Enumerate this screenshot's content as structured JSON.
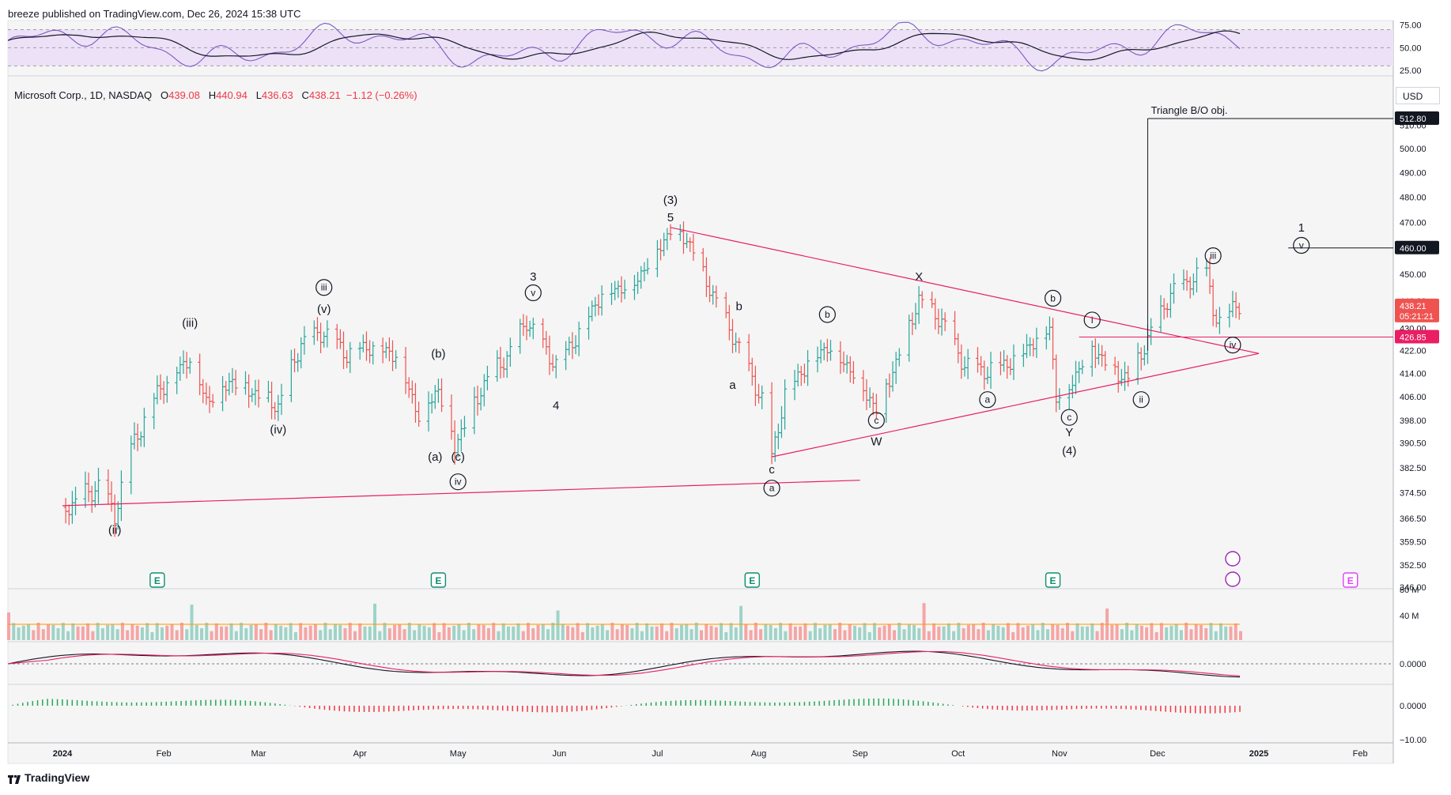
{
  "header": {
    "published_by": "breeze published on TradingView.com, Dec 26, 2024 15:38 UTC"
  },
  "legend": {
    "symbol": "Microsoft Corp., 1D, NASDAQ",
    "o_label": "O",
    "o_value": "439.08",
    "h_label": "H",
    "h_value": "440.94",
    "l_label": "L",
    "l_value": "436.63",
    "c_label": "C",
    "c_value": "438.21",
    "change": "−1.12 (−0.26%)"
  },
  "currency": "USD",
  "brand": "TradingView",
  "colors": {
    "up": "#26a69a",
    "down": "#ef5350",
    "trendline": "#e91e63",
    "rsi": "#7e57c2",
    "rsi_band": "#ede1f7",
    "macd": "#131722",
    "signal": "#e91e63",
    "hist_up": "#26a65b",
    "hist_down": "#f23645",
    "earnings": "#0e8f6e"
  },
  "chart_data": {
    "type": "bar",
    "subtype": "ohlc-with-elliott-wave-annotations",
    "x_labels": [
      "2024",
      "Feb",
      "Mar",
      "Apr",
      "May",
      "Jun",
      "Jul",
      "Aug",
      "Sep",
      "Oct",
      "Nov",
      "Dec",
      "2025",
      "Feb"
    ],
    "x_label_dates": [
      "2024-01-01",
      "2024-02-01",
      "2024-03-01",
      "2024-04-01",
      "2024-05-01",
      "2024-06-01",
      "2024-07-01",
      "2024-08-01",
      "2024-09-01",
      "2024-10-01",
      "2024-11-01",
      "2024-12-01",
      "2025-01-01",
      "2025-02-01"
    ],
    "y_ticks": [
      346.0,
      352.5,
      359.5,
      366.5,
      374.5,
      382.5,
      390.5,
      398.0,
      406.0,
      414.0,
      422.0,
      430.0,
      440.0,
      450.0,
      460.0,
      470.0,
      480.0,
      490.0,
      500.0,
      510.0
    ],
    "y_tick_labels": [
      "346.00",
      "352.50",
      "359.50",
      "366.50",
      "374.50",
      "382.50",
      "390.50",
      "398.00",
      "406.00",
      "414.00",
      "422.00",
      "430.00",
      "440.00",
      "450.00",
      "",
      "470.00",
      "480.00",
      "490.00",
      "500.00",
      "510.00"
    ],
    "ylim": [
      346,
      520
    ],
    "scale": "log",
    "price_path": [
      [
        "2024-01-02",
        370
      ],
      [
        "2024-01-08",
        374
      ],
      [
        "2024-01-12",
        377
      ],
      [
        "2024-01-17",
        368
      ],
      [
        "2024-01-22",
        389
      ],
      [
        "2024-01-30",
        408
      ],
      [
        "2024-02-09",
        420
      ],
      [
        "2024-02-14",
        405
      ],
      [
        "2024-02-22",
        412
      ],
      [
        "2024-02-28",
        408
      ],
      [
        "2024-03-07",
        403
      ],
      [
        "2024-03-14",
        425
      ],
      [
        "2024-03-21",
        429
      ],
      [
        "2024-03-28",
        421
      ],
      [
        "2024-04-04",
        424
      ],
      [
        "2024-04-12",
        421
      ],
      [
        "2024-04-19",
        400
      ],
      [
        "2024-04-25",
        409
      ],
      [
        "2024-04-30",
        390
      ],
      [
        "2024-05-03",
        397
      ],
      [
        "2024-05-10",
        413
      ],
      [
        "2024-05-16",
        420
      ],
      [
        "2024-05-22",
        433
      ],
      [
        "2024-05-31",
        417
      ],
      [
        "2024-06-05",
        425
      ],
      [
        "2024-06-14",
        443
      ],
      [
        "2024-06-24",
        447
      ],
      [
        "2024-07-05",
        467
      ],
      [
        "2024-07-10",
        464
      ],
      [
        "2024-07-17",
        445
      ],
      [
        "2024-07-24",
        428
      ],
      [
        "2024-08-02",
        405
      ],
      [
        "2024-08-05",
        386
      ],
      [
        "2024-08-09",
        407
      ],
      [
        "2024-08-16",
        418
      ],
      [
        "2024-08-22",
        424
      ],
      [
        "2024-08-29",
        416
      ],
      [
        "2024-09-06",
        402
      ],
      [
        "2024-09-12",
        418
      ],
      [
        "2024-09-19",
        441
      ],
      [
        "2024-09-26",
        433
      ],
      [
        "2024-10-03",
        417
      ],
      [
        "2024-10-10",
        415
      ],
      [
        "2024-10-18",
        419
      ],
      [
        "2024-10-29",
        431
      ],
      [
        "2024-10-31",
        406
      ],
      [
        "2024-11-04",
        410
      ],
      [
        "2024-11-11",
        424
      ],
      [
        "2024-11-15",
        418
      ],
      [
        "2024-11-22",
        412
      ],
      [
        "2024-11-27",
        424
      ],
      [
        "2024-12-05",
        443
      ],
      [
        "2024-12-16",
        452
      ],
      [
        "2024-12-18",
        437
      ],
      [
        "2024-12-20",
        432
      ],
      [
        "2024-12-24",
        439
      ],
      [
        "2024-12-26",
        438.21
      ]
    ],
    "price_labels": [
      {
        "value": 512.8,
        "text": "512.80",
        "style": "dark"
      },
      {
        "value": 460.0,
        "text": "460.00",
        "style": "dark"
      },
      {
        "value": 438.21,
        "text": "438.21",
        "sub": "05:21:21",
        "style": "red"
      },
      {
        "value": 426.85,
        "text": "426.85",
        "style": "pink"
      }
    ],
    "annotations": [
      {
        "text": "Triangle B/O obj.",
        "date": "2024-11-28",
        "price": 512.8
      },
      {
        "text": "(3)",
        "date": "2024-07-05",
        "price": 479
      },
      {
        "text": "5",
        "date": "2024-07-05",
        "price": 472
      },
      {
        "text": "(iii)",
        "date": "2024-02-09",
        "price": 432
      },
      {
        "text": "(v)",
        "date": "2024-03-21",
        "price": 437
      },
      {
        "text": "iii",
        "date": "2024-03-21",
        "price": 445,
        "circled": true
      },
      {
        "text": "(ii)",
        "date": "2024-01-17",
        "price": 363
      },
      {
        "text": "(iv)",
        "date": "2024-03-07",
        "price": 395
      },
      {
        "text": "(b)",
        "date": "2024-04-25",
        "price": 421
      },
      {
        "text": "(a)",
        "date": "2024-04-24",
        "price": 386
      },
      {
        "text": "(c)",
        "date": "2024-05-01",
        "price": 386
      },
      {
        "text": "iv",
        "date": "2024-05-01",
        "price": 378,
        "circled": true
      },
      {
        "text": "3",
        "date": "2024-05-24",
        "price": 449
      },
      {
        "text": "v",
        "date": "2024-05-24",
        "price": 443,
        "circled": true
      },
      {
        "text": "4",
        "date": "2024-05-31",
        "price": 403
      },
      {
        "text": "b",
        "date": "2024-07-26",
        "price": 438
      },
      {
        "text": "a",
        "date": "2024-07-24",
        "price": 410
      },
      {
        "text": "c",
        "date": "2024-08-05",
        "price": 382
      },
      {
        "text": "a",
        "date": "2024-08-05",
        "price": 376,
        "circled": true
      },
      {
        "text": "b",
        "date": "2024-08-22",
        "price": 435,
        "circled": true
      },
      {
        "text": "c",
        "date": "2024-09-06",
        "price": 398,
        "circled": true
      },
      {
        "text": "W",
        "date": "2024-09-06",
        "price": 391
      },
      {
        "text": "X",
        "date": "2024-09-19",
        "price": 449
      },
      {
        "text": "a",
        "date": "2024-10-10",
        "price": 405,
        "circled": true
      },
      {
        "text": "b",
        "date": "2024-10-30",
        "price": 441,
        "circled": true
      },
      {
        "text": "i",
        "date": "2024-11-11",
        "price": 433,
        "circled": true
      },
      {
        "text": "c",
        "date": "2024-11-04",
        "price": 399,
        "circled": true
      },
      {
        "text": "Y",
        "date": "2024-11-04",
        "price": 394
      },
      {
        "text": "(4)",
        "date": "2024-11-04",
        "price": 388
      },
      {
        "text": "ii",
        "date": "2024-11-26",
        "price": 405,
        "circled": true
      },
      {
        "text": "iii",
        "date": "2024-12-18",
        "price": 457,
        "circled": true
      },
      {
        "text": "iv",
        "date": "2024-12-24",
        "price": 424,
        "circled": true
      },
      {
        "text": "1",
        "date": "2025-01-14",
        "price": 468
      },
      {
        "text": "v",
        "date": "2025-01-14",
        "price": 461,
        "circled": true
      }
    ],
    "rsi": {
      "y_ticks": [
        "75.00",
        "50.00",
        "25.00"
      ],
      "band": [
        30,
        70
      ]
    },
    "volume": {
      "y_ticks": [
        "80 M",
        "40 M"
      ]
    },
    "macd": {
      "y_ticks": [
        "0.0000"
      ]
    },
    "macd_histogram": {
      "y_ticks": [
        "0.0000",
        "−10.00"
      ]
    },
    "earnings_markers": [
      "2024-01-30",
      "2024-04-25",
      "2024-07-30",
      "2024-10-30",
      "2025-01-29"
    ],
    "earnings_label": "E"
  }
}
